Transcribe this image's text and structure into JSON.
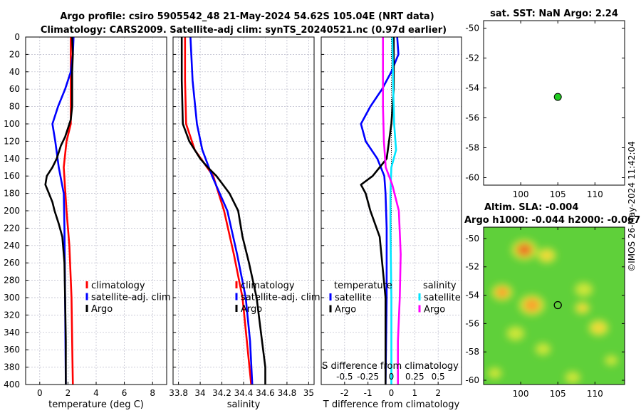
{
  "header": {
    "line1": "Argo profile: csiro 5905542_48 21-May-2024 54.62S 105.04E (NRT data)",
    "line2": "Climatology: CARS2009. Satellite-adj clim: synTS_20240521.nc (0.97d earlier)"
  },
  "colors": {
    "climatology": "#ff0000",
    "satellite": "#0000ff",
    "argo": "#000000",
    "sat_salinity": "#00e5ff",
    "argo_salinity": "#ff00ff",
    "marker": "#22cc22"
  },
  "chart_data": [
    {
      "type": "line",
      "title": "",
      "xlabel": "temperature (deg C)",
      "ylabel": "",
      "xlim": [
        -1,
        9
      ],
      "ylim": [
        400,
        0
      ],
      "xticks": [
        "0",
        "2",
        "4",
        "6",
        "8"
      ],
      "yticks": [
        "0",
        "20",
        "40",
        "60",
        "80",
        "100",
        "120",
        "140",
        "160",
        "180",
        "200",
        "220",
        "240",
        "260",
        "280",
        "300",
        "320",
        "340",
        "360",
        "380",
        "400"
      ],
      "legend": [
        "climatology",
        "satellite-adj. clim",
        "Argo"
      ],
      "series": [
        {
          "name": "climatology",
          "depth": [
            0,
            50,
            100,
            120,
            150,
            200,
            240,
            300,
            350,
            400
          ],
          "values": [
            2.2,
            2.2,
            2.2,
            1.9,
            1.7,
            1.9,
            2.1,
            2.25,
            2.3,
            2.35
          ]
        },
        {
          "name": "satellite-adj. clim",
          "depth": [
            0,
            20,
            40,
            60,
            80,
            100,
            120,
            150,
            180,
            220,
            300,
            400
          ],
          "values": [
            2.4,
            2.35,
            2.2,
            1.8,
            1.3,
            0.9,
            1.1,
            1.35,
            1.7,
            1.75,
            1.8,
            1.85
          ]
        },
        {
          "name": "Argo",
          "depth": [
            0,
            20,
            40,
            60,
            80,
            95,
            105,
            115,
            125,
            140,
            150,
            160,
            170,
            180,
            190,
            200,
            215,
            230,
            260,
            300,
            350,
            400
          ],
          "values": [
            2.3,
            2.35,
            2.3,
            2.3,
            2.3,
            2.2,
            2.0,
            1.8,
            1.5,
            1.2,
            0.9,
            0.5,
            0.4,
            0.65,
            0.9,
            1.05,
            1.35,
            1.6,
            1.75,
            1.8,
            1.85,
            1.85
          ]
        }
      ]
    },
    {
      "type": "line",
      "title": "",
      "xlabel": "salinity",
      "ylabel": "",
      "xlim": [
        33.75,
        35.05
      ],
      "ylim": [
        400,
        0
      ],
      "xticks": [
        "33.8",
        "34",
        "34.2",
        "34.4",
        "34.6",
        "34.8",
        "35"
      ],
      "legend": [
        "climatology",
        "satellite-adj. clim",
        "Argo"
      ],
      "series": [
        {
          "name": "climatology",
          "depth": [
            0,
            50,
            100,
            130,
            160,
            200,
            250,
            300,
            350,
            400
          ],
          "values": [
            33.86,
            33.86,
            33.87,
            33.95,
            34.12,
            34.22,
            34.31,
            34.39,
            34.43,
            34.47
          ]
        },
        {
          "name": "satellite-adj. clim",
          "depth": [
            0,
            50,
            100,
            130,
            160,
            200,
            250,
            300,
            350,
            400
          ],
          "values": [
            33.91,
            33.93,
            33.97,
            34.02,
            34.11,
            34.25,
            34.34,
            34.42,
            34.46,
            34.48
          ]
        },
        {
          "name": "Argo",
          "depth": [
            0,
            50,
            100,
            120,
            140,
            150,
            160,
            170,
            180,
            200,
            230,
            260,
            300,
            350,
            380,
            400
          ],
          "values": [
            33.83,
            33.83,
            33.84,
            33.9,
            34.0,
            34.07,
            34.15,
            34.21,
            34.27,
            34.35,
            34.39,
            34.45,
            34.52,
            34.57,
            34.6,
            34.6
          ]
        }
      ]
    },
    {
      "type": "line",
      "title": "",
      "xlabel": "T difference from climatology",
      "xlabel_top": "S difference from climatology",
      "ylabel": "",
      "xlim": [
        -3,
        3
      ],
      "ylim": [
        400,
        0
      ],
      "xticks": [
        "-2",
        "-1",
        "0",
        "1",
        "2"
      ],
      "xticks_top": [
        "-0.5",
        "-0.25",
        "0",
        "0.25",
        "0.5"
      ],
      "legend_title_left": "temperature",
      "legend_title_right": "salinity",
      "legend": [
        "satellite",
        "Argo",
        "satellite",
        "Argo"
      ],
      "series": [
        {
          "name": "T satellite",
          "depth": [
            0,
            20,
            40,
            60,
            80,
            100,
            120,
            140,
            160,
            180,
            220,
            300,
            400
          ],
          "values": [
            0.25,
            0.3,
            0.0,
            -0.4,
            -0.9,
            -1.3,
            -1.1,
            -0.6,
            -0.3,
            -0.25,
            -0.2,
            -0.2,
            -0.25
          ]
        },
        {
          "name": "T Argo",
          "depth": [
            0,
            60,
            100,
            120,
            140,
            150,
            160,
            170,
            180,
            200,
            230,
            300,
            400
          ],
          "values": [
            0.1,
            0.1,
            0.0,
            -0.1,
            -0.2,
            -0.5,
            -0.8,
            -1.3,
            -1.1,
            -0.9,
            -0.5,
            -0.25,
            -0.25
          ]
        },
        {
          "name": "S satellite",
          "depth": [
            0,
            60,
            100,
            130,
            150,
            180,
            220,
            300,
            400
          ],
          "values": [
            0.01,
            0.02,
            0.03,
            0.05,
            0.0,
            -0.01,
            -0.01,
            0.0,
            0.0
          ]
        },
        {
          "name": "S Argo",
          "depth": [
            0,
            80,
            120,
            150,
            170,
            200,
            250,
            300,
            350,
            400
          ],
          "values": [
            -0.09,
            -0.09,
            -0.08,
            -0.06,
            0.01,
            0.08,
            0.1,
            0.09,
            0.07,
            0.07
          ]
        }
      ]
    },
    {
      "type": "scatter",
      "title": "sat. SST: NaN Argo: 2.24",
      "xlabel": "",
      "ylabel": "",
      "xlim": [
        95,
        114
      ],
      "ylim": [
        -60.5,
        -49.5
      ],
      "xticks": [
        "100",
        "105",
        "110"
      ],
      "yticks": [
        "-50",
        "-52",
        "-54",
        "-56",
        "-58",
        "-60"
      ],
      "points": [
        {
          "x": 105,
          "y": -54.6
        }
      ]
    },
    {
      "type": "heatmap",
      "title_line1": "Altim. SLA: -0.004",
      "title_line2": "Argo h1000: -0.044 h2000: -0.067",
      "xlim": [
        95,
        114
      ],
      "ylim": [
        -60.3,
        -49.2
      ],
      "xticks": [
        "100",
        "105",
        "110"
      ],
      "yticks": [
        "-50",
        "-52",
        "-54",
        "-56",
        "-58",
        "-60"
      ],
      "points": [
        {
          "x": 105,
          "y": -54.7
        }
      ],
      "blobs": [
        {
          "x": 100.5,
          "y": -50.8,
          "r": 2.2,
          "v": 1.0
        },
        {
          "x": 103.5,
          "y": -51.2,
          "r": 1.6,
          "v": 0.55
        },
        {
          "x": 97.5,
          "y": -53.8,
          "r": 1.8,
          "v": 0.8
        },
        {
          "x": 101.5,
          "y": -54.7,
          "r": 2.2,
          "v": 0.85
        },
        {
          "x": 108.5,
          "y": -53.6,
          "r": 1.5,
          "v": 0.45
        },
        {
          "x": 108.3,
          "y": -54.9,
          "r": 1.3,
          "v": 0.5
        },
        {
          "x": 110.5,
          "y": -56.3,
          "r": 1.7,
          "v": 0.5
        },
        {
          "x": 99.3,
          "y": -56.7,
          "r": 1.5,
          "v": 0.45
        },
        {
          "x": 103.0,
          "y": -57.8,
          "r": 1.3,
          "v": 0.35
        },
        {
          "x": 112.2,
          "y": -58.6,
          "r": 1.1,
          "v": 0.35
        },
        {
          "x": 96.5,
          "y": -59.5,
          "r": 1.2,
          "v": 0.3
        },
        {
          "x": 107.0,
          "y": -59.8,
          "r": 1.3,
          "v": 0.25
        }
      ]
    }
  ],
  "watermark": "©IMOS 26-May-2024 11:42:04"
}
